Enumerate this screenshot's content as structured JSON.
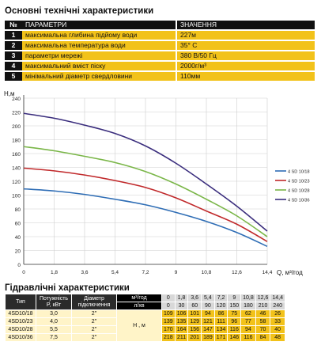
{
  "spec": {
    "title": "Основні технічні характеристики",
    "header": {
      "num": "№",
      "param": "ПАРАМЕТРИ",
      "value": "ЗНАЧЕННЯ"
    },
    "rows": [
      {
        "num": "1",
        "param": "максимальна глибина підйому води",
        "value": "227м"
      },
      {
        "num": "2",
        "param": "максимальна температура води",
        "value": "35° С"
      },
      {
        "num": "3",
        "param": "параметри мережі",
        "value": "380 В/50 Гц"
      },
      {
        "num": "4",
        "param": "максимальний вміст піску",
        "value": "2000г/м³"
      },
      {
        "num": "5",
        "param": "мінімальний діаметр свердловини",
        "value": "110мм"
      }
    ]
  },
  "chart_data": {
    "type": "line",
    "ylabel": "Н,м",
    "xlabel": "Q, м³/год",
    "x": [
      0,
      1.8,
      3.6,
      5.4,
      7.2,
      9,
      10.8,
      12.6,
      14.4
    ],
    "xlim": [
      0,
      14.4
    ],
    "ylim": [
      0,
      240
    ],
    "x_ticks": [
      "0",
      "1,8",
      "3,6",
      "5,4",
      "7,2",
      "9",
      "10,8",
      "12,6",
      "14,4"
    ],
    "y_ticks": [
      "0",
      "20",
      "40",
      "60",
      "80",
      "100",
      "120",
      "140",
      "160",
      "180",
      "200",
      "220",
      "240"
    ],
    "grid": true,
    "legend_position": "right",
    "series": [
      {
        "name": "4 SD 10/18",
        "color": "#2e6db5",
        "values": [
          109,
          106,
          101,
          94,
          86,
          75,
          62,
          46,
          26
        ]
      },
      {
        "name": "4 SD 10/23",
        "color": "#c0282a",
        "values": [
          139,
          135,
          129,
          121,
          111,
          96,
          77,
          58,
          33
        ]
      },
      {
        "name": "4 SD 10/28",
        "color": "#7ab648",
        "values": [
          170,
          164,
          156,
          147,
          134,
          116,
          94,
          70,
          40
        ]
      },
      {
        "name": "4 SD 10/36",
        "color": "#3a2d7d",
        "values": [
          218,
          211,
          201,
          189,
          171,
          146,
          116,
          84,
          48
        ]
      }
    ]
  },
  "hydraulic": {
    "title": "Гідравлічні характеристики",
    "col_type": "Тип",
    "col_power": "Потужність\nP, кВт",
    "col_diam": "Діаметр\nпідключення",
    "unit_m3": "м³/год",
    "unit_l": "л/хв",
    "head_label": "Н , м",
    "q_m3": [
      "0",
      "1,8",
      "3,6",
      "5,4",
      "7,2",
      "9",
      "10,8",
      "12,6",
      "14,4"
    ],
    "q_l": [
      "0",
      "30",
      "60",
      "90",
      "120",
      "150",
      "180",
      "210",
      "240"
    ],
    "rows": [
      {
        "type": "4SD10/18",
        "power": "3,0",
        "diam": "2\"",
        "h": [
          "109",
          "106",
          "101",
          "94",
          "86",
          "75",
          "62",
          "46",
          "26"
        ]
      },
      {
        "type": "4SD10/23",
        "power": "4,0",
        "diam": "2\"",
        "h": [
          "139",
          "135",
          "129",
          "121",
          "111",
          "96",
          "77",
          "58",
          "33"
        ]
      },
      {
        "type": "4SD10/28",
        "power": "5,5",
        "diam": "2\"",
        "h": [
          "170",
          "164",
          "156",
          "147",
          "134",
          "116",
          "94",
          "70",
          "40"
        ]
      },
      {
        "type": "4SD10/36",
        "power": "7,5",
        "diam": "2\"",
        "h": [
          "218",
          "211",
          "201",
          "189",
          "171",
          "146",
          "116",
          "84",
          "48"
        ]
      }
    ]
  }
}
